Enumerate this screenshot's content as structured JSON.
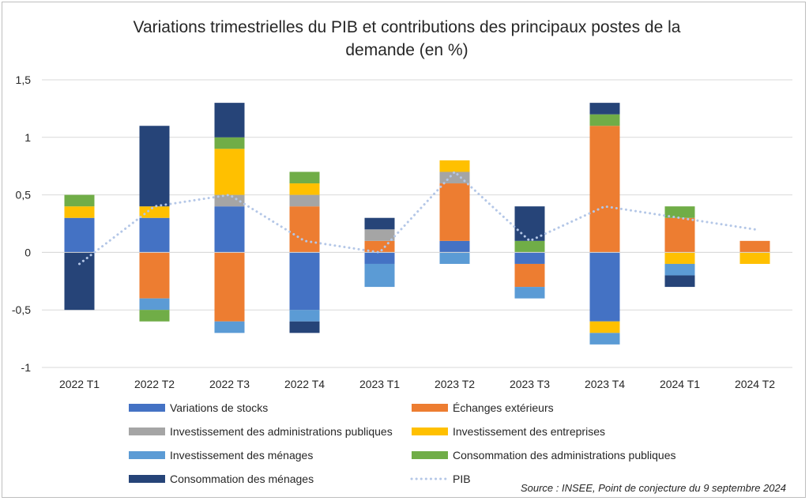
{
  "chart_data": {
    "type": "bar",
    "stacked": true,
    "title_lines": [
      "Variations trimestrielles du PIB et contributions des principaux postes de la",
      "demande (en %)"
    ],
    "categories": [
      "2022 T1",
      "2022 T2",
      "2022 T3",
      "2022 T4",
      "2023 T1",
      "2023 T2",
      "2023 T3",
      "2023 T4",
      "2024 T1",
      "2024 T2"
    ],
    "ylim": [
      -1,
      1.5
    ],
    "yticks": [
      -1,
      -0.5,
      0,
      0.5,
      1,
      1.5
    ],
    "ytick_labels": [
      "-1",
      "-0,5",
      "0",
      "0,5",
      "1",
      "1,5"
    ],
    "grid": true,
    "series": [
      {
        "name": "Variations de stocks",
        "color": "#4472C4",
        "values": [
          0.3,
          0.3,
          0.4,
          -0.5,
          -0.1,
          0.1,
          -0.1,
          -0.6,
          0,
          0
        ]
      },
      {
        "name": "Échanges extérieurs",
        "color": "#ED7D31",
        "values": [
          0,
          -0.4,
          -0.6,
          0.4,
          0.1,
          0.5,
          -0.2,
          1.1,
          0.3,
          0.1
        ]
      },
      {
        "name": "Investissement des administrations publiques",
        "color": "#A5A5A5",
        "values": [
          0,
          0,
          0.1,
          0.1,
          0.1,
          0.1,
          0,
          0,
          0,
          0
        ]
      },
      {
        "name": "Investissement des entreprises",
        "color": "#FFC000",
        "values": [
          0.1,
          0.1,
          0.4,
          0.1,
          0,
          0.1,
          0,
          -0.1,
          -0.1,
          -0.1
        ]
      },
      {
        "name": "Investissement des ménages",
        "color": "#5B9BD5",
        "values": [
          0,
          -0.1,
          -0.1,
          -0.1,
          -0.2,
          -0.1,
          -0.1,
          -0.1,
          -0.1,
          0
        ]
      },
      {
        "name": "Consommation des administrations publiques",
        "color": "#70AD47",
        "values": [
          0.1,
          -0.1,
          0.1,
          0.1,
          0,
          0,
          0.1,
          0.1,
          0.1,
          0
        ]
      },
      {
        "name": "Consommation des ménages",
        "color": "#264478",
        "values": [
          -0.5,
          0.7,
          0.3,
          -0.1,
          0.1,
          0,
          0.3,
          0.1,
          -0.1,
          0
        ]
      }
    ],
    "line": {
      "name": "PIB",
      "color": "#B4C7E7",
      "style": "dotted",
      "values": [
        -0.1,
        0.4,
        0.5,
        0.1,
        0,
        0.7,
        0.1,
        0.4,
        0.3,
        0.2
      ]
    },
    "legend_position": "bottom",
    "source": "Source : INSEE, Point de conjecture du 9 septembre 2024"
  }
}
